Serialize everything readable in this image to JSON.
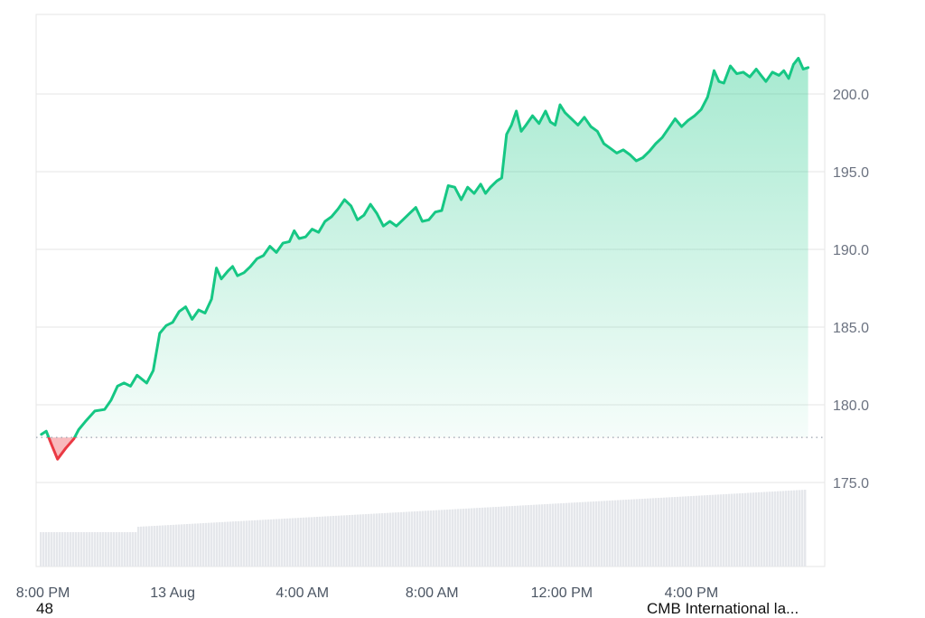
{
  "chart_data": {
    "type": "area",
    "baseline": 177.9,
    "ylim": [
      170.0,
      205.0
    ],
    "y_ticks": [
      "200.0",
      "195.0",
      "190.0",
      "185.0",
      "180.0",
      "175.0"
    ],
    "y_tick_values": [
      200,
      195,
      190,
      185,
      180,
      175
    ],
    "x_ticks": [
      "8:00 PM",
      "13 Aug",
      "4:00 AM",
      "8:00 AM",
      "12:00 PM",
      "4:00 PM"
    ],
    "x_tick_hours": [
      0,
      4,
      8,
      12,
      16,
      20
    ],
    "x_range_hours": [
      -0.1,
      23.5
    ],
    "x_unit": "hours after 8:00 PM",
    "grid": true,
    "colors": {
      "up": "#16c784",
      "down": "#ea3943",
      "grid": "#e6e6e6",
      "volume": "#e5e7eb"
    },
    "series": [
      {
        "values": [
          [
            -0.05,
            178.1
          ],
          [
            0.1,
            178.3
          ],
          [
            0.25,
            177.5
          ],
          [
            0.45,
            176.5
          ],
          [
            0.7,
            177.2
          ],
          [
            0.95,
            177.8
          ],
          [
            1.1,
            178.4
          ],
          [
            1.3,
            178.9
          ],
          [
            1.6,
            179.6
          ],
          [
            1.9,
            179.7
          ],
          [
            2.1,
            180.3
          ],
          [
            2.3,
            181.2
          ],
          [
            2.5,
            181.4
          ],
          [
            2.7,
            181.2
          ],
          [
            2.9,
            181.9
          ],
          [
            3.2,
            181.4
          ],
          [
            3.4,
            182.2
          ],
          [
            3.6,
            184.6
          ],
          [
            3.8,
            185.1
          ],
          [
            4.0,
            185.3
          ],
          [
            4.2,
            186.0
          ],
          [
            4.4,
            186.3
          ],
          [
            4.6,
            185.5
          ],
          [
            4.8,
            186.1
          ],
          [
            5.0,
            185.9
          ],
          [
            5.2,
            186.8
          ],
          [
            5.35,
            188.8
          ],
          [
            5.5,
            188.1
          ],
          [
            5.7,
            188.6
          ],
          [
            5.85,
            188.9
          ],
          [
            6.0,
            188.3
          ],
          [
            6.2,
            188.5
          ],
          [
            6.4,
            188.9
          ],
          [
            6.6,
            189.4
          ],
          [
            6.8,
            189.6
          ],
          [
            7.0,
            190.2
          ],
          [
            7.2,
            189.8
          ],
          [
            7.4,
            190.4
          ],
          [
            7.6,
            190.5
          ],
          [
            7.75,
            191.2
          ],
          [
            7.9,
            190.7
          ],
          [
            8.1,
            190.8
          ],
          [
            8.3,
            191.3
          ],
          [
            8.5,
            191.1
          ],
          [
            8.7,
            191.8
          ],
          [
            8.9,
            192.1
          ],
          [
            9.1,
            192.6
          ],
          [
            9.3,
            193.2
          ],
          [
            9.5,
            192.8
          ],
          [
            9.7,
            191.9
          ],
          [
            9.9,
            192.2
          ],
          [
            10.1,
            192.9
          ],
          [
            10.3,
            192.3
          ],
          [
            10.5,
            191.5
          ],
          [
            10.7,
            191.8
          ],
          [
            10.9,
            191.5
          ],
          [
            11.1,
            191.9
          ],
          [
            11.3,
            192.3
          ],
          [
            11.5,
            192.7
          ],
          [
            11.7,
            191.8
          ],
          [
            11.9,
            191.9
          ],
          [
            12.1,
            192.4
          ],
          [
            12.3,
            192.5
          ],
          [
            12.5,
            194.1
          ],
          [
            12.7,
            194.0
          ],
          [
            12.9,
            193.2
          ],
          [
            13.1,
            194.0
          ],
          [
            13.3,
            193.6
          ],
          [
            13.5,
            194.2
          ],
          [
            13.65,
            193.6
          ],
          [
            13.8,
            194.0
          ],
          [
            14.0,
            194.4
          ],
          [
            14.15,
            194.6
          ],
          [
            14.3,
            197.4
          ],
          [
            14.45,
            198.0
          ],
          [
            14.6,
            198.9
          ],
          [
            14.75,
            197.6
          ],
          [
            14.9,
            198.0
          ],
          [
            15.1,
            198.6
          ],
          [
            15.3,
            198.1
          ],
          [
            15.5,
            198.9
          ],
          [
            15.65,
            198.2
          ],
          [
            15.8,
            198.0
          ],
          [
            15.95,
            199.3
          ],
          [
            16.1,
            198.8
          ],
          [
            16.3,
            198.4
          ],
          [
            16.5,
            198.0
          ],
          [
            16.7,
            198.5
          ],
          [
            16.9,
            197.9
          ],
          [
            17.1,
            197.6
          ],
          [
            17.3,
            196.8
          ],
          [
            17.5,
            196.5
          ],
          [
            17.7,
            196.2
          ],
          [
            17.9,
            196.4
          ],
          [
            18.1,
            196.1
          ],
          [
            18.3,
            195.7
          ],
          [
            18.5,
            195.9
          ],
          [
            18.7,
            196.3
          ],
          [
            18.9,
            196.8
          ],
          [
            19.1,
            197.2
          ],
          [
            19.3,
            197.8
          ],
          [
            19.5,
            198.4
          ],
          [
            19.7,
            197.9
          ],
          [
            19.9,
            198.3
          ],
          [
            20.1,
            198.6
          ],
          [
            20.3,
            199.0
          ],
          [
            20.5,
            199.8
          ],
          [
            20.6,
            200.6
          ],
          [
            20.7,
            201.5
          ],
          [
            20.85,
            200.8
          ],
          [
            21.0,
            200.7
          ],
          [
            21.2,
            201.8
          ],
          [
            21.4,
            201.3
          ],
          [
            21.6,
            201.4
          ],
          [
            21.8,
            201.1
          ],
          [
            22.0,
            201.6
          ],
          [
            22.15,
            201.2
          ],
          [
            22.3,
            200.8
          ],
          [
            22.5,
            201.4
          ],
          [
            22.7,
            201.2
          ],
          [
            22.85,
            201.5
          ],
          [
            23.0,
            201.0
          ],
          [
            23.15,
            201.9
          ],
          [
            23.3,
            202.3
          ],
          [
            23.45,
            201.6
          ],
          [
            23.6,
            201.7
          ]
        ]
      }
    ]
  },
  "footer": {
    "left_text": "48",
    "right_text": "CMB International la..."
  }
}
